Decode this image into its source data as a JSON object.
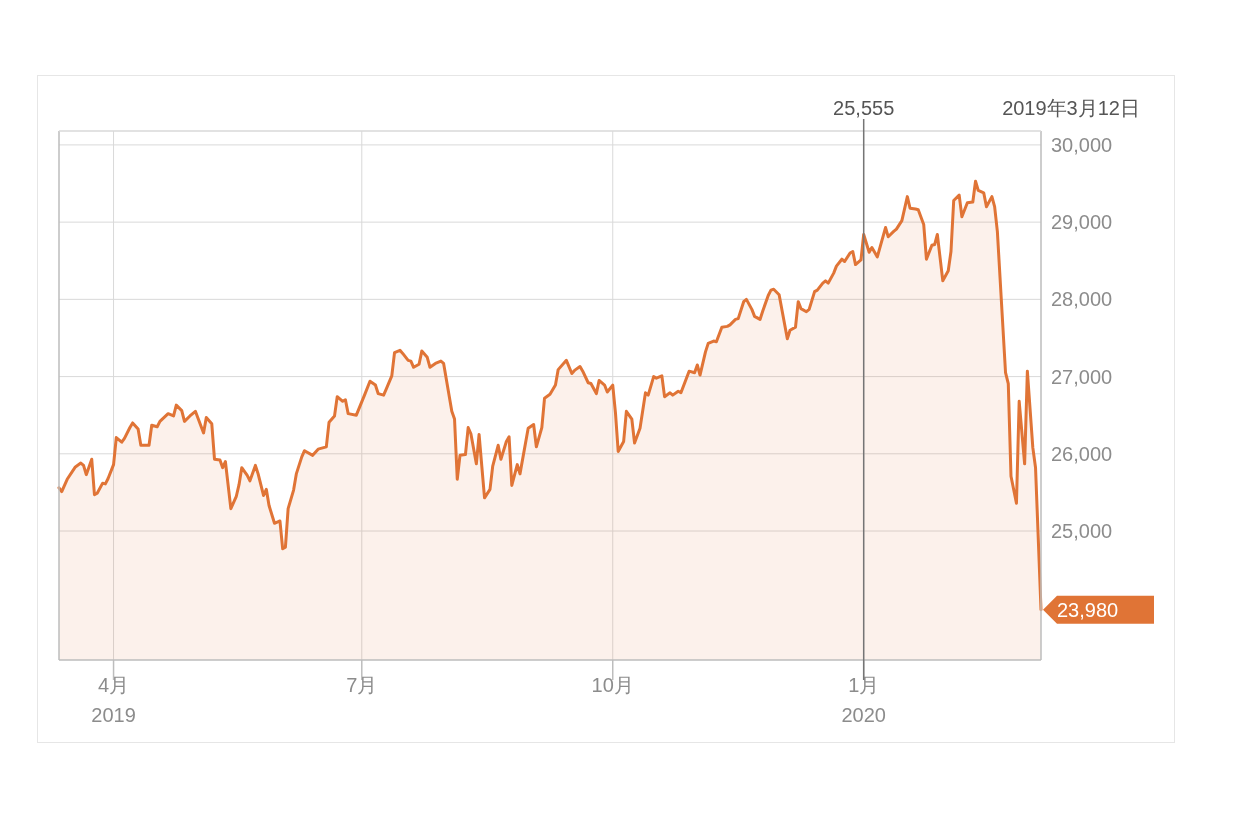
{
  "chart_data": {
    "type": "area",
    "x": [
      "2019-03-12",
      "2019-03-13",
      "2019-03-15",
      "2019-03-18",
      "2019-03-20",
      "2019-03-21",
      "2019-03-22",
      "2019-03-24",
      "2019-03-25",
      "2019-03-26",
      "2019-03-28",
      "2019-03-29",
      "2019-03-30",
      "2019-04-01",
      "2019-04-02",
      "2019-04-04",
      "2019-04-05",
      "2019-04-07",
      "2019-04-08",
      "2019-04-10",
      "2019-04-11",
      "2019-04-14",
      "2019-04-15",
      "2019-04-17",
      "2019-04-18",
      "2019-04-21",
      "2019-04-23",
      "2019-04-24",
      "2019-04-26",
      "2019-04-27",
      "2019-04-29",
      "2019-05-01",
      "2019-05-04",
      "2019-05-05",
      "2019-05-07",
      "2019-05-08",
      "2019-05-10",
      "2019-05-11",
      "2019-05-12",
      "2019-05-14",
      "2019-05-16",
      "2019-05-17",
      "2019-05-18",
      "2019-05-20",
      "2019-05-21",
      "2019-05-23",
      "2019-05-24",
      "2019-05-26",
      "2019-05-27",
      "2019-05-28",
      "2019-05-30",
      "2019-06-01",
      "2019-06-02",
      "2019-06-03",
      "2019-06-04",
      "2019-06-06",
      "2019-06-07",
      "2019-06-09",
      "2019-06-10",
      "2019-06-13",
      "2019-06-15",
      "2019-06-18",
      "2019-06-19",
      "2019-06-21",
      "2019-06-22",
      "2019-06-24",
      "2019-06-25",
      "2019-06-26",
      "2019-06-29",
      "2019-07-02",
      "2019-07-04",
      "2019-07-06",
      "2019-07-07",
      "2019-07-09",
      "2019-07-10",
      "2019-07-12",
      "2019-07-13",
      "2019-07-15",
      "2019-07-16",
      "2019-07-18",
      "2019-07-19",
      "2019-07-20",
      "2019-07-22",
      "2019-07-23",
      "2019-07-25",
      "2019-07-26",
      "2019-07-28",
      "2019-07-30",
      "2019-07-31",
      "2019-08-03",
      "2019-08-04",
      "2019-08-05",
      "2019-08-06",
      "2019-08-08",
      "2019-08-09",
      "2019-08-10",
      "2019-08-12",
      "2019-08-13",
      "2019-08-15",
      "2019-08-17",
      "2019-08-18",
      "2019-08-20",
      "2019-08-21",
      "2019-08-23",
      "2019-08-24",
      "2019-08-25",
      "2019-08-27",
      "2019-08-28",
      "2019-08-31",
      "2019-09-02",
      "2019-09-03",
      "2019-09-05",
      "2019-09-06",
      "2019-09-08",
      "2019-09-10",
      "2019-09-11",
      "2019-09-14",
      "2019-09-16",
      "2019-09-17",
      "2019-09-19",
      "2019-09-20",
      "2019-09-22",
      "2019-09-23",
      "2019-09-25",
      "2019-09-26",
      "2019-09-28",
      "2019-09-29",
      "2019-10-01",
      "2019-10-02",
      "2019-10-03",
      "2019-10-05",
      "2019-10-06",
      "2019-10-08",
      "2019-10-09",
      "2019-10-11",
      "2019-10-13",
      "2019-10-14",
      "2019-10-16",
      "2019-10-17",
      "2019-10-19",
      "2019-10-20",
      "2019-10-22",
      "2019-10-23",
      "2019-10-25",
      "2019-10-26",
      "2019-10-29",
      "2019-10-31",
      "2019-11-01",
      "2019-11-02",
      "2019-11-04",
      "2019-11-05",
      "2019-11-07",
      "2019-11-08",
      "2019-11-10",
      "2019-11-12",
      "2019-11-13",
      "2019-11-15",
      "2019-11-16",
      "2019-11-18",
      "2019-11-19",
      "2019-11-21",
      "2019-11-22",
      "2019-11-24",
      "2019-11-25",
      "2019-11-27",
      "2019-11-28",
      "2019-11-29",
      "2019-12-01",
      "2019-12-04",
      "2019-12-05",
      "2019-12-07",
      "2019-12-08",
      "2019-12-09",
      "2019-12-11",
      "2019-12-12",
      "2019-12-14",
      "2019-12-15",
      "2019-12-17",
      "2019-12-18",
      "2019-12-19",
      "2019-12-21",
      "2019-12-22",
      "2019-12-24",
      "2019-12-25",
      "2019-12-27",
      "2019-12-28",
      "2019-12-29",
      "2019-12-31",
      "2020-01-01",
      "2020-01-03",
      "2020-01-04",
      "2020-01-06",
      "2020-01-09",
      "2020-01-10",
      "2020-01-12",
      "2020-01-13",
      "2020-01-15",
      "2020-01-17",
      "2020-01-18",
      "2020-01-20",
      "2020-01-21",
      "2020-01-23",
      "2020-01-24",
      "2020-01-26",
      "2020-01-27",
      "2020-01-28",
      "2020-01-30",
      "2020-02-01",
      "2020-02-02",
      "2020-02-03",
      "2020-02-05",
      "2020-02-06",
      "2020-02-08",
      "2020-02-10",
      "2020-02-11",
      "2020-02-12",
      "2020-02-14",
      "2020-02-15",
      "2020-02-17",
      "2020-02-18",
      "2020-02-19",
      "2020-02-22",
      "2020-02-23",
      "2020-02-24",
      "2020-02-26",
      "2020-02-27",
      "2020-02-29",
      "2020-03-01",
      "2020-03-03",
      "2020-03-04",
      "2020-03-06"
    ],
    "series": [
      {
        "color": "#e07436",
        "values": [
          25560,
          25510,
          25670,
          25830,
          25880,
          25850,
          25730,
          25930,
          25470,
          25490,
          25620,
          25610,
          25680,
          25860,
          26210,
          26150,
          26200,
          26340,
          26400,
          26320,
          26110,
          26110,
          26370,
          26350,
          26420,
          26520,
          26490,
          26630,
          26560,
          26420,
          26490,
          26550,
          26270,
          26470,
          26390,
          25930,
          25920,
          25820,
          25900,
          25290,
          25450,
          25600,
          25820,
          25720,
          25650,
          25850,
          25740,
          25460,
          25540,
          25330,
          25100,
          25130,
          24770,
          24790,
          25290,
          25530,
          25740,
          25960,
          26040,
          25980,
          26060,
          26090,
          26410,
          26490,
          26740,
          26680,
          26700,
          26520,
          26500,
          26760,
          26940,
          26890,
          26780,
          26760,
          26840,
          27010,
          27310,
          27340,
          27300,
          27210,
          27200,
          27120,
          27160,
          27330,
          27250,
          27120,
          27170,
          27200,
          27170,
          26550,
          26450,
          25670,
          25980,
          25990,
          26340,
          26260,
          25870,
          26250,
          25430,
          25540,
          25840,
          26110,
          25930,
          26160,
          26220,
          25590,
          25860,
          25740,
          26330,
          26380,
          26090,
          26340,
          26720,
          26770,
          26890,
          27090,
          27210,
          27040,
          27080,
          27130,
          27070,
          26920,
          26910,
          26780,
          26950,
          26890,
          26800,
          26890,
          26530,
          26030,
          26160,
          26550,
          26450,
          26140,
          26330,
          26790,
          26760,
          27000,
          26980,
          27010,
          26740,
          26790,
          26760,
          26810,
          26790,
          27070,
          27050,
          27150,
          27020,
          27320,
          27430,
          27460,
          27450,
          27640,
          27650,
          27670,
          27740,
          27750,
          27970,
          28000,
          27870,
          27780,
          27740,
          27850,
          28050,
          28120,
          28130,
          28060,
          27490,
          27600,
          27640,
          27970,
          27880,
          27840,
          27870,
          28100,
          28120,
          28210,
          28240,
          28210,
          28340,
          28430,
          28520,
          28490,
          28600,
          28620,
          28450,
          28510,
          28840,
          28610,
          28670,
          28550,
          28930,
          28810,
          28880,
          28910,
          29020,
          29330,
          29180,
          29170,
          29160,
          28970,
          28520,
          28700,
          28710,
          28840,
          28240,
          28370,
          28620,
          29280,
          29350,
          29070,
          29250,
          29260,
          29530,
          29410,
          29380,
          29200,
          29330,
          29200,
          28880,
          27050,
          26910,
          25710,
          25360,
          26680,
          25870,
          27070,
          26080,
          25820,
          23980
        ]
      }
    ],
    "xlim": [
      "2019-03-12",
      "2020-03-06"
    ],
    "xticks": [
      {
        "value": "2019-04-01",
        "label": "4月\n2019"
      },
      {
        "value": "2019-07-01",
        "label": "7月"
      },
      {
        "value": "2019-10-01",
        "label": "10月"
      },
      {
        "value": "2020-01-01",
        "label": "1月\n2020"
      }
    ],
    "ylim": [
      23330,
      30180
    ],
    "yticks": [
      {
        "value": 25000,
        "label": "25,000"
      },
      {
        "value": 26000,
        "label": "26,000"
      },
      {
        "value": 27000,
        "label": "27,000"
      },
      {
        "value": 28000,
        "label": "28,000"
      },
      {
        "value": 29000,
        "label": "29,000"
      },
      {
        "value": 30000,
        "label": "30,000"
      }
    ],
    "grid": true,
    "ref_lines": [
      {
        "axis": "x",
        "value": "2020-01-01",
        "label": "25,555",
        "color": "#757575"
      }
    ],
    "annotations": [
      "2019年3月12日",
      {
        "text": "23,980",
        "x": "2020-03-06",
        "y": 23980
      }
    ]
  }
}
